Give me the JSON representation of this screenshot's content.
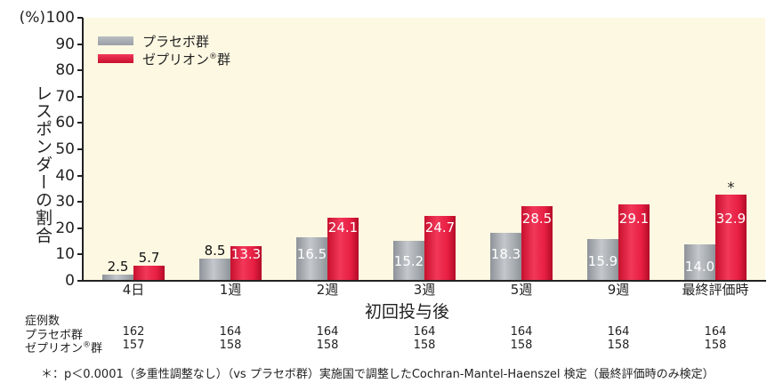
{
  "chart_data": {
    "type": "bar",
    "title": "",
    "xlabel": "初回投与後",
    "ylabel": "レスポンダーの割合",
    "y_unit": "(%)",
    "ylim": [
      0,
      100
    ],
    "y_ticks": [
      0,
      10,
      20,
      30,
      40,
      50,
      60,
      70,
      80,
      90,
      100
    ],
    "grid": false,
    "legend_position": "top-left",
    "categories": [
      "4日",
      "1週",
      "2週",
      "3週",
      "5週",
      "9週",
      "最終評価時"
    ],
    "series": [
      {
        "name": "プラセボ群",
        "color": "#a4a9ae",
        "values": [
          2.5,
          8.5,
          16.5,
          15.2,
          18.3,
          15.9,
          14.0
        ]
      },
      {
        "name": "ゼプリオン®群",
        "color": "#e61e42",
        "values": [
          5.7,
          13.3,
          24.1,
          24.7,
          28.5,
          29.1,
          32.9
        ]
      }
    ],
    "annotations": [
      {
        "category": "最終評価時",
        "series": "ゼプリオン®群",
        "text": "*"
      }
    ],
    "background_color": "#fdf8e2"
  },
  "y_axis": {
    "unit_label": "(%)",
    "title": "レスポンダーの割合",
    "ticks": [
      "0",
      "10",
      "20",
      "30",
      "40",
      "50",
      "60",
      "70",
      "80",
      "90",
      "100"
    ]
  },
  "x_axis": {
    "title": "初回投与後",
    "labels": [
      "4日",
      "1週",
      "2週",
      "3週",
      "5週",
      "9週",
      "最終評価時"
    ]
  },
  "legend": {
    "placebo": "プラセボ群",
    "drug": "ゼプリオン",
    "drug_reg": "®",
    "drug_suffix": "群"
  },
  "bars": {
    "placebo": [
      "2.5",
      "8.5",
      "16.5",
      "15.2",
      "18.3",
      "15.9",
      "14.0"
    ],
    "drug": [
      "5.7",
      "13.3",
      "24.1",
      "24.7",
      "28.5",
      "29.1",
      "32.9"
    ],
    "star": "*"
  },
  "cases": {
    "title": "症例数",
    "placebo_label": "プラセボ群",
    "drug_label": "ゼプリオン",
    "drug_reg": "®",
    "drug_suffix": "群",
    "placebo": [
      "162",
      "164",
      "164",
      "164",
      "164",
      "164",
      "164"
    ],
    "drug": [
      "157",
      "158",
      "158",
      "158",
      "158",
      "158",
      "158"
    ]
  },
  "footnote": "＊：p＜0.0001（多重性調整なし）（vs プラセボ群）実施国で調整したCochran-Mantel-Haenszel 検定（最終評価時のみ検定）"
}
